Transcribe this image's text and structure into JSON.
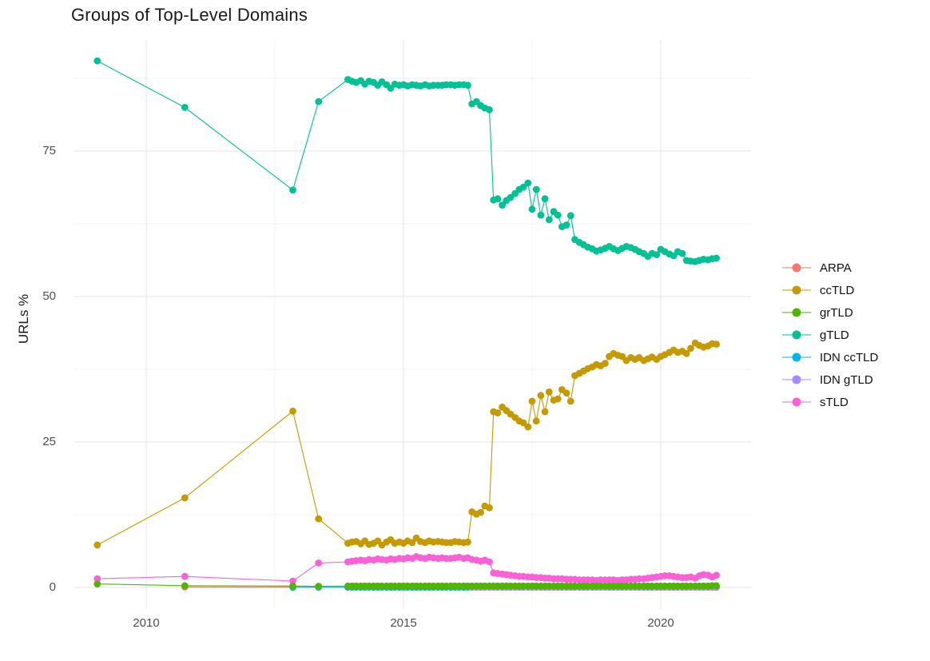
{
  "title": "Groups of Top-Level Domains",
  "y_axis": {
    "label": "URLs %",
    "ticks": [
      "0",
      "25",
      "50",
      "75"
    ]
  },
  "x_axis": {
    "ticks": [
      "2010",
      "2015",
      "2020"
    ]
  },
  "legend": {
    "items": [
      {
        "label": "ARPA",
        "color": "#F8766D"
      },
      {
        "label": "ccTLD",
        "color": "#C49A00"
      },
      {
        "label": "grTLD",
        "color": "#53B400"
      },
      {
        "label": "gTLD",
        "color": "#00C094"
      },
      {
        "label": "IDN ccTLD",
        "color": "#00B6EB"
      },
      {
        "label": "IDN gTLD",
        "color": "#A58AFF"
      },
      {
        "label": "sTLD",
        "color": "#FB61D7"
      }
    ]
  },
  "chart_data": {
    "type": "line",
    "title": "Groups of Top-Level Domains",
    "xlabel": "",
    "ylabel": "URLs %",
    "xlim": [
      2008.6,
      2021.75
    ],
    "ylim": [
      -3.7,
      94.1
    ],
    "x_ticks": [
      2010,
      2015,
      2020
    ],
    "y_ticks": [
      0,
      25,
      50,
      75
    ],
    "x_minor": [
      2012.5,
      2017.5
    ],
    "y_minor": [
      12.5,
      37.5,
      62.5,
      87.5
    ],
    "grid": true,
    "legend_position": "right",
    "x": [
      2009.05,
      2010.75,
      2012.85,
      2013.35,
      2013.92,
      2014.0,
      2014.08,
      2014.17,
      2014.25,
      2014.33,
      2014.42,
      2014.5,
      2014.58,
      2014.67,
      2014.75,
      2014.83,
      2014.92,
      2015.0,
      2015.08,
      2015.17,
      2015.25,
      2015.33,
      2015.42,
      2015.5,
      2015.58,
      2015.67,
      2015.75,
      2015.83,
      2015.92,
      2016.0,
      2016.08,
      2016.17,
      2016.25,
      2016.33,
      2016.42,
      2016.5,
      2016.58,
      2016.67,
      2016.75,
      2016.83,
      2016.92,
      2017.0,
      2017.08,
      2017.17,
      2017.25,
      2017.33,
      2017.42,
      2017.5,
      2017.58,
      2017.67,
      2017.75,
      2017.83,
      2017.92,
      2018.0,
      2018.08,
      2018.17,
      2018.25,
      2018.33,
      2018.42,
      2018.5,
      2018.58,
      2018.67,
      2018.75,
      2018.83,
      2018.92,
      2019.0,
      2019.08,
      2019.17,
      2019.25,
      2019.33,
      2019.42,
      2019.5,
      2019.58,
      2019.67,
      2019.75,
      2019.83,
      2019.92,
      2020.0,
      2020.08,
      2020.17,
      2020.25,
      2020.33,
      2020.42,
      2020.5,
      2020.58,
      2020.67,
      2020.75,
      2020.83,
      2020.92,
      2021.0,
      2021.08
    ],
    "series": [
      {
        "name": "ARPA",
        "color": "#F8766D",
        "values": [
          null,
          0.1,
          0.08,
          0.05,
          0.04,
          0.04,
          0.04,
          0.04,
          0.04,
          0.04,
          0.04,
          0.04,
          0.04,
          0.04,
          0.04,
          0.04,
          0.04,
          0.04,
          0.04,
          0.04,
          0.04,
          0.04,
          0.04,
          0.04,
          0.04,
          0.04,
          0.04,
          0.04,
          0.04,
          0.04,
          0.04,
          0.04,
          0.04,
          0.04,
          0.04,
          0.04,
          0.04,
          0.04,
          0.04,
          0.04,
          0.04,
          0.04,
          0.04,
          0.04,
          0.04,
          0.04,
          0.04,
          0.04,
          0.04,
          0.04,
          0.04,
          0.04,
          0.04,
          0.04,
          0.04,
          0.04,
          0.04,
          0.04,
          0.04,
          0.04,
          0.04,
          0.04,
          0.04,
          0.04,
          0.04,
          0.04,
          0.04,
          0.04,
          0.04,
          0.04,
          0.04,
          0.04,
          0.04,
          0.04,
          0.04,
          0.04,
          0.04,
          0.04,
          0.04,
          0.04,
          0.04,
          0.04,
          0.04,
          0.04,
          0.04,
          0.04,
          0.04,
          0.04,
          0.04,
          0.04,
          0.04
        ]
      },
      {
        "name": "ccTLD",
        "color": "#C49A00",
        "values": [
          7.3,
          15.4,
          30.3,
          11.8,
          7.6,
          7.8,
          7.9,
          7.5,
          8.0,
          7.4,
          7.6,
          8.0,
          7.3,
          7.8,
          8.2,
          7.6,
          7.8,
          7.6,
          8.0,
          7.7,
          8.5,
          7.9,
          7.7,
          8.0,
          7.8,
          7.9,
          7.8,
          7.7,
          7.7,
          7.9,
          7.8,
          7.7,
          7.8,
          13.0,
          12.6,
          12.9,
          14.0,
          13.7,
          30.2,
          30.0,
          31.0,
          30.4,
          29.8,
          29.2,
          28.6,
          28.3,
          27.6,
          32.0,
          28.6,
          33.0,
          30.2,
          33.6,
          32.2,
          32.4,
          34.0,
          33.4,
          32.0,
          36.4,
          36.8,
          37.2,
          37.6,
          37.9,
          38.3,
          38.1,
          38.5,
          39.7,
          40.2,
          39.9,
          39.7,
          39.0,
          39.5,
          39.2,
          39.5,
          39.0,
          39.3,
          39.6,
          39.2,
          39.7,
          40.0,
          40.4,
          40.8,
          40.4,
          40.6,
          40.2,
          41.1,
          42.0,
          41.6,
          41.3,
          41.5,
          41.9,
          41.8
        ]
      },
      {
        "name": "grTLD",
        "color": "#53B400",
        "values": [
          0.6,
          0.3,
          0.25,
          0.2,
          0.25,
          0.25,
          0.25,
          0.25,
          0.25,
          0.25,
          0.25,
          0.25,
          0.25,
          0.25,
          0.25,
          0.25,
          0.25,
          0.25,
          0.25,
          0.25,
          0.25,
          0.25,
          0.25,
          0.25,
          0.25,
          0.25,
          0.25,
          0.25,
          0.25,
          0.25,
          0.25,
          0.25,
          0.25,
          0.25,
          0.25,
          0.25,
          0.25,
          0.25,
          0.25,
          0.25,
          0.25,
          0.25,
          0.25,
          0.25,
          0.25,
          0.25,
          0.25,
          0.25,
          0.25,
          0.25,
          0.25,
          0.25,
          0.25,
          0.25,
          0.25,
          0.25,
          0.25,
          0.25,
          0.25,
          0.25,
          0.25,
          0.25,
          0.25,
          0.25,
          0.25,
          0.25,
          0.25,
          0.25,
          0.25,
          0.25,
          0.25,
          0.25,
          0.25,
          0.25,
          0.25,
          0.25,
          0.25,
          0.25,
          0.25,
          0.25,
          0.25,
          0.25,
          0.25,
          0.25,
          0.25,
          0.25,
          0.25,
          0.25,
          0.25,
          0.3,
          0.3
        ]
      },
      {
        "name": "gTLD",
        "color": "#00C094",
        "values": [
          90.5,
          82.5,
          68.3,
          83.5,
          87.3,
          87.0,
          86.8,
          87.1,
          86.5,
          87.0,
          86.8,
          86.3,
          86.9,
          86.4,
          85.8,
          86.5,
          86.3,
          86.4,
          86.2,
          86.4,
          86.3,
          86.2,
          86.4,
          86.2,
          86.3,
          86.3,
          86.3,
          86.4,
          86.4,
          86.3,
          86.4,
          86.4,
          86.3,
          83.1,
          83.5,
          82.8,
          82.4,
          82.1,
          66.6,
          66.8,
          65.7,
          66.5,
          67.0,
          67.7,
          68.4,
          68.8,
          69.5,
          65.0,
          68.4,
          64.0,
          66.8,
          63.2,
          64.6,
          64.0,
          62.0,
          62.3,
          63.9,
          59.8,
          59.3,
          58.9,
          58.5,
          58.2,
          57.8,
          58.0,
          58.3,
          58.6,
          58.2,
          57.9,
          58.3,
          58.6,
          58.4,
          58.1,
          57.7,
          57.4,
          56.9,
          57.4,
          57.2,
          58.1,
          57.7,
          57.3,
          57.0,
          57.7,
          57.4,
          56.2,
          56.1,
          56.0,
          56.2,
          56.4,
          56.3,
          56.5,
          56.6
        ]
      },
      {
        "name": "IDN ccTLD",
        "color": "#00B6EB",
        "values": [
          null,
          null,
          0.03,
          0.05,
          0.05,
          0.05,
          0.05,
          0.05,
          0.05,
          0.05,
          0.05,
          0.05,
          0.05,
          0.05,
          0.05,
          0.05,
          0.05,
          0.05,
          0.05,
          0.05,
          0.05,
          0.05,
          0.05,
          0.05,
          0.05,
          0.05,
          0.05,
          0.05,
          0.05,
          0.05,
          0.05,
          0.05,
          0.05,
          0.05,
          0.05,
          0.05,
          0.05,
          0.05,
          0.05,
          0.05,
          0.05,
          0.05,
          0.05,
          0.05,
          0.05,
          0.05,
          0.05,
          0.05,
          0.05,
          0.05,
          0.05,
          0.05,
          0.05,
          0.05,
          0.05,
          0.05,
          0.05,
          0.05,
          0.05,
          0.05,
          0.05,
          0.05,
          0.05,
          0.05,
          0.05,
          0.05,
          0.05,
          0.05,
          0.05,
          0.05,
          0.05,
          0.05,
          0.05,
          0.05,
          0.05,
          0.05,
          0.05,
          0.05,
          0.05,
          0.05,
          0.05,
          0.05,
          0.05,
          0.05,
          0.05,
          0.05,
          0.05,
          0.05,
          0.05,
          0.05,
          0.05
        ]
      },
      {
        "name": "IDN gTLD",
        "color": "#A58AFF",
        "values": [
          null,
          null,
          null,
          null,
          null,
          null,
          null,
          null,
          null,
          null,
          null,
          null,
          null,
          null,
          null,
          null,
          null,
          null,
          null,
          null,
          null,
          null,
          null,
          null,
          null,
          null,
          null,
          null,
          null,
          null,
          null,
          null,
          null,
          0.05,
          0.05,
          0.05,
          0.05,
          0.05,
          0.05,
          0.05,
          0.05,
          0.05,
          0.05,
          0.05,
          0.05,
          0.05,
          0.05,
          0.05,
          0.05,
          0.05,
          0.05,
          0.05,
          0.05,
          0.05,
          0.05,
          0.05,
          0.05,
          0.05,
          0.05,
          0.05,
          0.05,
          0.05,
          0.05,
          0.05,
          0.05,
          0.05,
          0.05,
          0.05,
          0.05,
          0.05,
          0.05,
          0.05,
          0.05,
          0.05,
          0.05,
          0.05,
          0.05,
          0.05,
          0.05,
          0.05,
          0.05,
          0.05,
          0.05,
          0.05,
          0.05,
          0.05,
          0.05,
          0.05,
          0.05,
          0.05,
          0.05
        ]
      },
      {
        "name": "sTLD",
        "color": "#FB61D7",
        "values": [
          1.5,
          1.9,
          1.1,
          4.2,
          4.4,
          4.5,
          4.6,
          4.7,
          4.6,
          4.8,
          4.7,
          4.9,
          4.8,
          4.7,
          4.9,
          4.8,
          5.0,
          4.9,
          5.1,
          5.0,
          5.3,
          5.1,
          5.0,
          5.2,
          5.1,
          5.0,
          5.1,
          5.0,
          5.0,
          5.1,
          5.2,
          5.0,
          5.1,
          4.8,
          4.7,
          4.5,
          4.7,
          4.4,
          2.5,
          2.4,
          2.3,
          2.2,
          2.1,
          2.0,
          1.9,
          1.9,
          1.8,
          1.8,
          1.7,
          1.7,
          1.6,
          1.6,
          1.5,
          1.5,
          1.5,
          1.4,
          1.4,
          1.4,
          1.3,
          1.3,
          1.3,
          1.3,
          1.2,
          1.3,
          1.3,
          1.3,
          1.3,
          1.2,
          1.3,
          1.3,
          1.4,
          1.4,
          1.5,
          1.5,
          1.6,
          1.7,
          1.8,
          1.9,
          2.0,
          2.0,
          1.9,
          1.8,
          1.7,
          1.7,
          1.8,
          1.6,
          2.0,
          2.2,
          2.1,
          1.8,
          2.1
        ]
      }
    ]
  }
}
